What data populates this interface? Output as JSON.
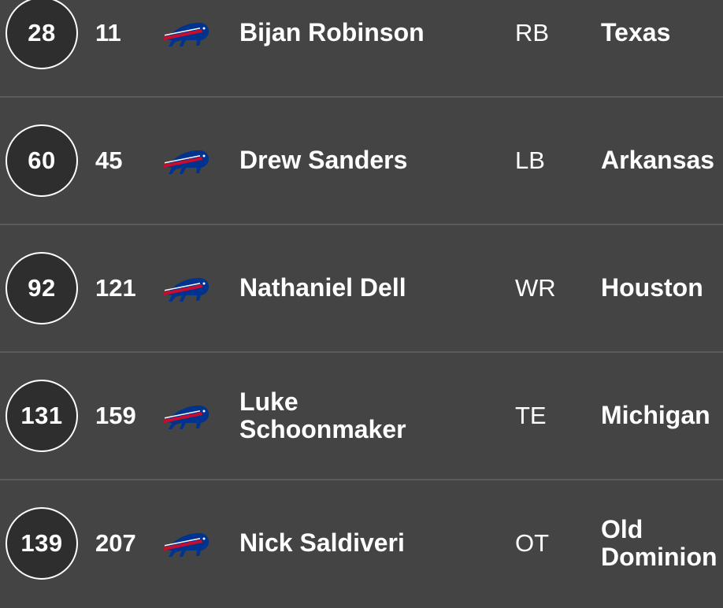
{
  "picks": [
    {
      "pick": "28",
      "rank": "11",
      "team_logo": "bills-logo",
      "name": "Bijan Robinson",
      "position": "RB",
      "school": "Texas"
    },
    {
      "pick": "60",
      "rank": "45",
      "team_logo": "bills-logo",
      "name": "Drew Sanders",
      "position": "LB",
      "school": "Arkansas"
    },
    {
      "pick": "92",
      "rank": "121",
      "team_logo": "bills-logo",
      "name": "Nathaniel Dell",
      "position": "WR",
      "school": "Houston"
    },
    {
      "pick": "131",
      "rank": "159",
      "team_logo": "bills-logo",
      "name": "Luke Schoonmaker",
      "position": "TE",
      "school": "Michigan"
    },
    {
      "pick": "139",
      "rank": "207",
      "team_logo": "bills-logo",
      "name": "Nick Saldiveri",
      "position": "OT",
      "school": "Old Dominion"
    }
  ],
  "colors": {
    "background": "#444444",
    "divider": "#5c5c5c",
    "circle_fill": "#2e2e2e",
    "logo_blue": "#00338D",
    "logo_red": "#C60C30"
  }
}
